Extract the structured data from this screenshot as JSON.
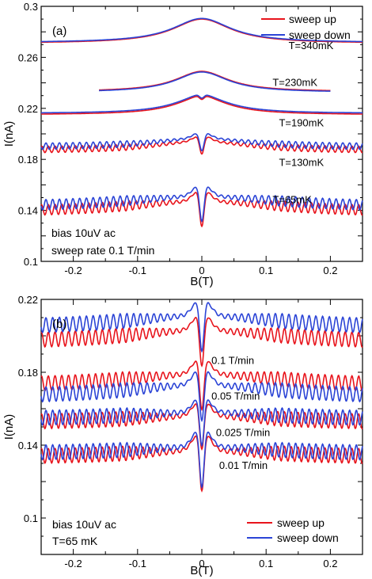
{
  "colors": {
    "up": "#e8141c",
    "down": "#2b44d6",
    "axis": "#000000"
  },
  "chart_data": [
    {
      "type": "line",
      "panel_label": "(a)",
      "xlabel": "B(T)",
      "ylabel": "I(nA)",
      "xlim": [
        -0.25,
        0.25
      ],
      "ylim": [
        0.1,
        0.3
      ],
      "x_ticks": [
        "-0.2",
        "-0.1",
        "0",
        "0.1",
        "0.2"
      ],
      "y_ticks": [
        "0.3",
        "0.26",
        "0.22",
        "0.18",
        "0.14",
        "0.1"
      ],
      "legend": {
        "placement": "top-right",
        "entries": [
          "sweep up",
          "sweep down"
        ]
      },
      "notes": [
        "bias 10uV ac",
        "sweep rate 0.1 T/min"
      ],
      "series": [
        {
          "label": "T=340mK",
          "base": 0.271,
          "peak": 0.019,
          "width": 0.055,
          "dip": 0.0,
          "ripple": 0.0,
          "x_range": [
            -0.25,
            0.25
          ],
          "offset_up": 0.0,
          "offset_down": 0.0005,
          "label_x": 0.135,
          "label_y": 0.2665
        },
        {
          "label": "T=230mK",
          "base": 0.233,
          "peak": 0.016,
          "width": 0.05,
          "dip": 0.0,
          "ripple": 0.0,
          "x_range": [
            -0.16,
            0.2
          ],
          "offset_up": 0.0,
          "offset_down": -0.0005,
          "label_x": 0.11,
          "label_y": 0.2375
        },
        {
          "label": "T=190mK",
          "base": 0.215,
          "peak": 0.014,
          "width": 0.05,
          "dip": 0.003,
          "ripple": 0.0,
          "x_range": [
            -0.25,
            0.25
          ],
          "offset_up": 0.0,
          "offset_down": 0.001,
          "label_x": 0.12,
          "label_y": 0.206
        },
        {
          "label": "T=130mK",
          "base": 0.188,
          "peak": 0.007,
          "width": 0.09,
          "dip": 0.015,
          "ripple": 0.0025,
          "x_range": [
            -0.25,
            0.25
          ],
          "offset_up": -0.001,
          "offset_down": 0.0015,
          "label_x": 0.12,
          "label_y": 0.175
        },
        {
          "label": "T=65mK",
          "base": 0.138,
          "peak": 0.009,
          "width": 0.15,
          "dip": 0.03,
          "ripple": 0.004,
          "x_range": [
            -0.25,
            0.25
          ],
          "offset_up": 0.0,
          "offset_down": 0.004,
          "label_x": 0.11,
          "label_y": 0.1455
        }
      ]
    },
    {
      "type": "line",
      "panel_label": "(b)",
      "xlabel": "B(T)",
      "ylabel": "I(nA)",
      "xlim": [
        -0.25,
        0.25
      ],
      "ylim": [
        0.08,
        0.22
      ],
      "x_ticks": [
        "-0.2",
        "-0.1",
        "0",
        "0.1",
        "0.2"
      ],
      "y_ticks": [
        "0.22",
        "0.18",
        "0.14",
        "0.1"
      ],
      "legend": {
        "placement": "bottom-right",
        "entries": [
          "sweep up",
          "sweep down"
        ]
      },
      "notes": [
        "bias 10uV ac",
        "T=65 mK"
      ],
      "series": [
        {
          "label": "0.1 T/min",
          "base": 0.196,
          "peak": 0.007,
          "width": 0.15,
          "dip": 0.03,
          "ripple": 0.004,
          "x_range": [
            -0.25,
            0.25
          ],
          "offset_up": 0.0,
          "offset_down": 0.008,
          "label_x": 0.015,
          "label_y": 0.1845
        },
        {
          "label": "0.05 T/min",
          "base": 0.172,
          "peak": 0.007,
          "width": 0.15,
          "dip": 0.03,
          "ripple": 0.004,
          "x_range": [
            -0.25,
            0.25
          ],
          "offset_up": 0.0,
          "offset_down": -0.006,
          "label_x": 0.015,
          "label_y": 0.165
        },
        {
          "label": "0.025 T/min",
          "base": 0.152,
          "peak": 0.004,
          "width": 0.15,
          "dip": 0.028,
          "ripple": 0.004,
          "x_range": [
            -0.25,
            0.25
          ],
          "offset_up": 0.0,
          "offset_down": 0.002,
          "label_x": 0.022,
          "label_y": 0.145
        },
        {
          "label": "0.01 T/min",
          "base": 0.133,
          "peak": 0.004,
          "width": 0.15,
          "dip": 0.034,
          "ripple": 0.004,
          "x_range": [
            -0.25,
            0.25
          ],
          "offset_up": 0.0,
          "offset_down": 0.002,
          "label_x": 0.027,
          "label_y": 0.127
        }
      ]
    }
  ]
}
